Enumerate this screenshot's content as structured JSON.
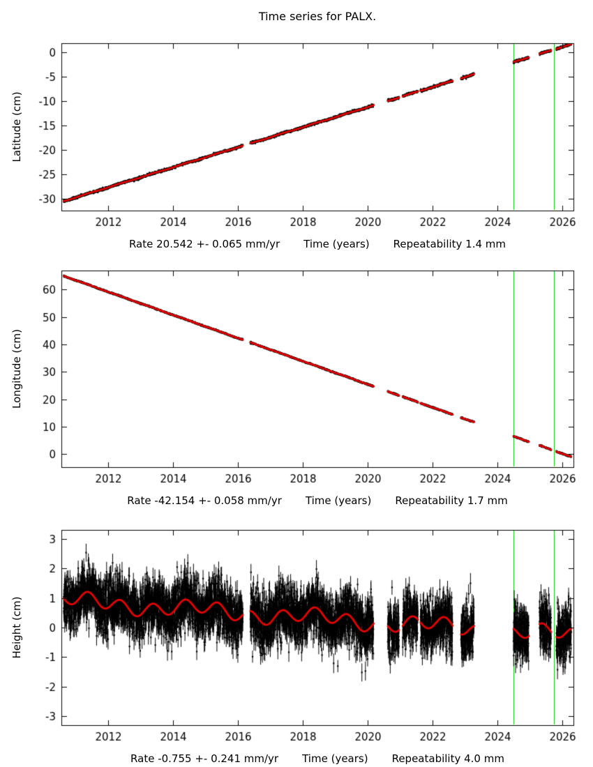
{
  "page": {
    "title": "Time series for PALX."
  },
  "colors": {
    "background": "#ffffff",
    "text": "#000000",
    "axis": "#000000",
    "points": "#000000",
    "model_line": "#e60000",
    "event_line": "#00cc00"
  },
  "chart_data": [
    {
      "type": "scatter",
      "panel": "latitude",
      "ylabel": "Latitude (cm)",
      "xlabel": "Time (years)",
      "rate_label": "Rate 20.542 +- 0.065 mm/yr",
      "repeatability_label": "Repeatability 1.4 mm",
      "xlim": [
        2010.55,
        2026.35
      ],
      "ylim": [
        -32.5,
        1.8
      ],
      "xticks": [
        2012,
        2014,
        2016,
        2018,
        2020,
        2022,
        2024,
        2026
      ],
      "yticks": [
        0,
        -5,
        -10,
        -15,
        -20,
        -25,
        -30
      ],
      "trend": {
        "rate_cm_per_yr": 2.0542,
        "ref_year": 2018.0,
        "ref_cm": -15.4
      },
      "seasonal_amp_cm": 0.05,
      "slow_amp_cm": 0.0,
      "slow_period_yr": 4.0,
      "noise_sd_cm": 0.12,
      "error_bar_cm": 0.13,
      "sample_days": 1,
      "seed": 101,
      "event_lines_x": [
        2024.5,
        2025.75
      ],
      "segments": [
        [
          2010.62,
          2016.15
        ],
        [
          2016.38,
          2020.18
        ],
        [
          2020.62,
          2020.97
        ],
        [
          2021.08,
          2021.55
        ],
        [
          2021.63,
          2022.62
        ],
        [
          2022.88,
          2023.28
        ],
        [
          2024.5,
          2024.97
        ],
        [
          2025.3,
          2025.66
        ],
        [
          2025.82,
          2026.28
        ]
      ]
    },
    {
      "type": "scatter",
      "panel": "longitude",
      "ylabel": "Longitude (cm)",
      "xlabel": "Time (years)",
      "rate_label": "Rate -42.154 +- 0.058 mm/yr",
      "repeatability_label": "Repeatability 1.7 mm",
      "xlim": [
        2010.55,
        2026.35
      ],
      "ylim": [
        -4.8,
        67.0
      ],
      "xticks": [
        2012,
        2014,
        2016,
        2018,
        2020,
        2022,
        2024,
        2026
      ],
      "yticks": [
        0,
        10,
        20,
        30,
        40,
        50,
        60
      ],
      "trend": {
        "rate_cm_per_yr": -4.2154,
        "ref_year": 2018.0,
        "ref_cm": 33.9
      },
      "seasonal_amp_cm": 0.05,
      "slow_amp_cm": 0.0,
      "slow_period_yr": 4.0,
      "noise_sd_cm": 0.12,
      "error_bar_cm": 0.13,
      "sample_days": 1,
      "seed": 202,
      "event_lines_x": [
        2024.5,
        2025.75
      ],
      "segments": [
        [
          2010.62,
          2016.15
        ],
        [
          2016.38,
          2020.18
        ],
        [
          2020.62,
          2020.97
        ],
        [
          2021.08,
          2021.55
        ],
        [
          2021.63,
          2022.62
        ],
        [
          2022.88,
          2023.28
        ],
        [
          2024.5,
          2024.97
        ],
        [
          2025.3,
          2025.66
        ],
        [
          2025.82,
          2026.28
        ]
      ]
    },
    {
      "type": "scatter",
      "panel": "height",
      "ylabel": "Height (cm)",
      "xlabel": "Time (years)",
      "rate_label": "Rate -0.755 +- 0.241 mm/yr",
      "repeatability_label": "Repeatability 4.0 mm",
      "xlim": [
        2010.55,
        2026.35
      ],
      "ylim": [
        -3.3,
        3.3
      ],
      "xticks": [
        2012,
        2014,
        2016,
        2018,
        2020,
        2022,
        2024,
        2026
      ],
      "yticks": [
        3,
        2,
        1,
        0,
        -1,
        -2,
        -3
      ],
      "trend": {
        "rate_cm_per_yr": -0.0755,
        "ref_year": 2018.0,
        "ref_cm": 0.35
      },
      "seasonal_amp_cm": 0.22,
      "slow_amp_cm": 0.14,
      "slow_period_yr": 3.6,
      "noise_sd_cm": 0.45,
      "error_bar_cm": 0.27,
      "sample_days": 1,
      "seed": 303,
      "event_lines_x": [
        2024.5,
        2025.75
      ],
      "segments": [
        [
          2010.62,
          2016.15
        ],
        [
          2016.38,
          2020.18
        ],
        [
          2020.62,
          2020.97
        ],
        [
          2021.08,
          2021.55
        ],
        [
          2021.63,
          2022.62
        ],
        [
          2022.88,
          2023.28
        ],
        [
          2024.5,
          2024.97
        ],
        [
          2025.3,
          2025.66
        ],
        [
          2025.82,
          2026.28
        ]
      ]
    }
  ]
}
